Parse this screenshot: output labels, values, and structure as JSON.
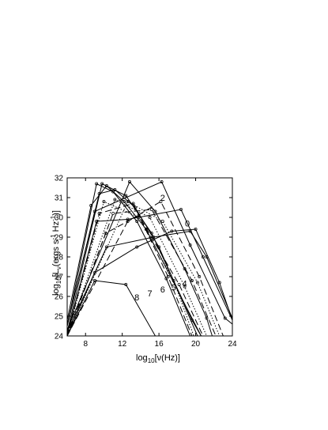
{
  "chart_data": {
    "type": "line",
    "title": "",
    "xlabel": {
      "prefix": "log",
      "sub": "10",
      "rest": "[ν(Hz)]"
    },
    "ylabel": {
      "prefix": "log",
      "sub1": "10",
      "mid": "[L",
      "sub2": "ν",
      "open": "(ergs s",
      "sup1": "-1",
      "hz": " Hz",
      "sup2": "-1",
      "close": ")]"
    },
    "xlim": [
      6,
      24
    ],
    "ylim": [
      24,
      32
    ],
    "x_ticks": [
      8,
      12,
      16,
      20,
      24
    ],
    "y_ticks": [
      24,
      25,
      26,
      27,
      28,
      29,
      30,
      31,
      32
    ],
    "grid": false,
    "legend": "none",
    "curve_labels": [
      {
        "text": "2",
        "x": 16.4,
        "y": 30.85
      },
      {
        "text": "0",
        "x": 19.1,
        "y": 29.55
      },
      {
        "text": "4",
        "x": 18.8,
        "y": 26.5
      },
      {
        "text": "5",
        "x": 17.6,
        "y": 26.3
      },
      {
        "text": "6",
        "x": 16.4,
        "y": 26.2
      },
      {
        "text": "7",
        "x": 15.0,
        "y": 26.0
      },
      {
        "text": "8",
        "x": 13.6,
        "y": 25.8
      }
    ],
    "series": [
      {
        "dash": "solid",
        "points": [
          [
            6,
            24.8
          ],
          [
            8.6,
            30.6
          ],
          [
            10.3,
            31.6
          ],
          [
            12.2,
            30.8
          ],
          [
            14.6,
            29.4
          ],
          [
            20.6,
            24
          ]
        ]
      },
      {
        "dash": "solid",
        "points": [
          [
            6,
            24.5
          ],
          [
            9.2,
            31.7
          ],
          [
            11,
            31.3
          ],
          [
            13.6,
            29.8
          ],
          [
            16.8,
            26.9
          ],
          [
            19.4,
            24
          ]
        ]
      },
      {
        "dash": "solid",
        "points": [
          [
            6,
            24.6
          ],
          [
            9.5,
            31.2
          ],
          [
            11.2,
            31.4
          ],
          [
            13.4,
            30.5
          ],
          [
            16,
            28.5
          ],
          [
            20.2,
            24
          ]
        ]
      },
      {
        "dash": "solid",
        "points": [
          [
            6,
            24.2
          ],
          [
            9.8,
            31.7
          ],
          [
            12.4,
            31.1
          ],
          [
            15.2,
            29.2
          ],
          [
            19.6,
            24.8
          ],
          [
            20.6,
            24
          ]
        ]
      },
      {
        "dash": "solid",
        "points": [
          [
            6,
            24.3
          ],
          [
            12.8,
            31.8
          ],
          [
            15.6,
            30.3
          ],
          [
            18.8,
            27.4
          ],
          [
            21.2,
            24.9
          ],
          [
            21.8,
            24
          ]
        ]
      },
      {
        "dash": "solid",
        "points": [
          [
            6,
            24.5
          ],
          [
            9,
            30.3
          ],
          [
            16.3,
            31.8
          ],
          [
            19.4,
            28.6
          ],
          [
            23.2,
            24.9
          ],
          [
            24,
            24.6
          ]
        ]
      },
      {
        "dash": "solid",
        "points": [
          [
            6,
            24.1
          ],
          [
            9.2,
            29.8
          ],
          [
            12.6,
            29.9
          ],
          [
            18.4,
            30.4
          ],
          [
            20.8,
            28
          ],
          [
            24,
            24.8
          ]
        ]
      },
      {
        "dash": "solid",
        "points": [
          [
            6,
            24.2
          ],
          [
            10.3,
            28.5
          ],
          [
            15.4,
            29
          ],
          [
            19.4,
            29.3
          ],
          [
            21.2,
            28
          ],
          [
            24,
            24.9
          ]
        ]
      },
      {
        "dash": "solid",
        "points": [
          [
            6,
            24
          ],
          [
            9,
            27.2
          ],
          [
            13.6,
            28.5
          ],
          [
            17.4,
            29.3
          ],
          [
            20,
            29.4
          ],
          [
            22.6,
            26.7
          ],
          [
            24,
            24.8
          ]
        ]
      },
      {
        "dash": "solid",
        "points": [
          [
            6,
            24
          ],
          [
            9,
            26.8
          ],
          [
            12.4,
            26.6
          ],
          [
            15.6,
            24
          ]
        ]
      },
      {
        "dash": "long",
        "points": [
          [
            6,
            24
          ],
          [
            9.5,
            30.2
          ],
          [
            13.2,
            30.7
          ],
          [
            17,
            27
          ],
          [
            19.6,
            24
          ]
        ]
      },
      {
        "dash": "long",
        "points": [
          [
            6,
            24
          ],
          [
            10.2,
            29.2
          ],
          [
            13.8,
            30.1
          ],
          [
            18.2,
            26.6
          ],
          [
            20.8,
            24
          ]
        ]
      },
      {
        "dash": "long",
        "points": [
          [
            6,
            24
          ],
          [
            11,
            30.2
          ],
          [
            15.2,
            30.4
          ],
          [
            19.6,
            26.8
          ],
          [
            22.2,
            24
          ]
        ]
      },
      {
        "dash": "long",
        "points": [
          [
            6,
            24
          ],
          [
            12.6,
            29.8
          ],
          [
            16.2,
            30.8
          ],
          [
            20.4,
            27
          ],
          [
            23,
            24
          ]
        ]
      },
      {
        "dash": "dotted",
        "points": [
          [
            6,
            24
          ],
          [
            10,
            30.8
          ],
          [
            13.8,
            30
          ],
          [
            17.6,
            26.8
          ],
          [
            19.8,
            24
          ]
        ]
      },
      {
        "dash": "dotted",
        "points": [
          [
            6,
            24
          ],
          [
            11.2,
            30.9
          ],
          [
            15,
            30
          ],
          [
            18.8,
            26.5
          ],
          [
            21.2,
            24
          ]
        ]
      },
      {
        "dash": "dotted",
        "points": [
          [
            6,
            24
          ],
          [
            12.6,
            30.8
          ],
          [
            16.4,
            29.8
          ],
          [
            20.2,
            26.7
          ],
          [
            22.6,
            24
          ]
        ]
      }
    ]
  }
}
